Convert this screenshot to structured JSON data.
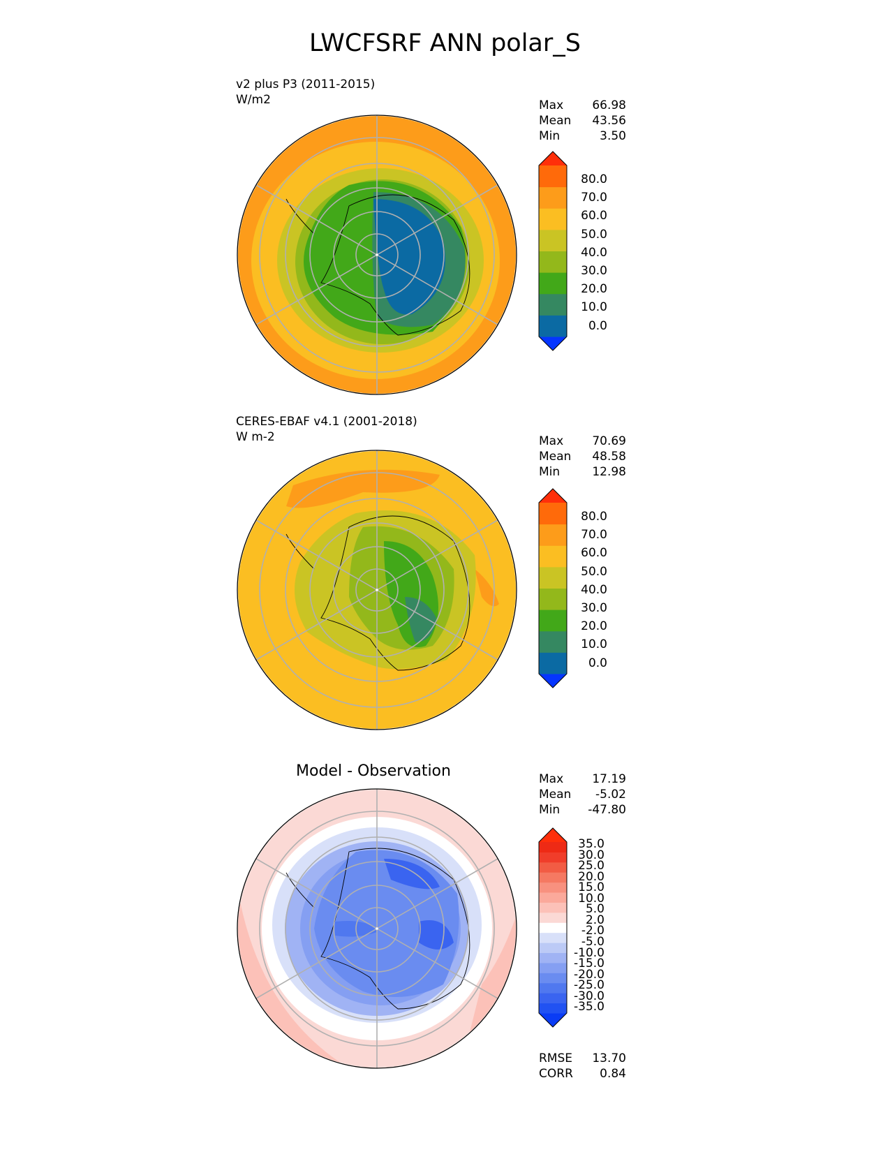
{
  "title": "LWCFSRF ANN polar_S",
  "panels": [
    {
      "name": "test",
      "label_line1": "v2 plus P3 (2011-2015)",
      "label_line2": "W/m2",
      "stats": [
        {
          "label": "Max",
          "value": "66.98"
        },
        {
          "label": "Mean",
          "value": "43.56"
        },
        {
          "label": "Min",
          "value": "3.50"
        }
      ],
      "colorbar": {
        "colors": [
          "#0535ff",
          "#0b6aa3",
          "#358861",
          "#42a819",
          "#93b81b",
          "#cac424",
          "#fbbe22",
          "#fd9c1a",
          "#ff6a0a",
          "#ff2f0a"
        ],
        "ticks": [
          "80.0",
          "70.0",
          "60.0",
          "50.0",
          "40.0",
          "30.0",
          "20.0",
          "10.0",
          "0.0"
        ]
      }
    },
    {
      "name": "reference",
      "label_line1": "CERES-EBAF v4.1 (2001-2018)",
      "label_line2": "W m-2",
      "stats": [
        {
          "label": "Max",
          "value": "70.69"
        },
        {
          "label": "Mean",
          "value": "48.58"
        },
        {
          "label": "Min",
          "value": "12.98"
        }
      ],
      "colorbar": {
        "colors": [
          "#0535ff",
          "#0b6aa3",
          "#358861",
          "#42a819",
          "#93b81b",
          "#cac424",
          "#fbbe22",
          "#fd9c1a",
          "#ff6a0a",
          "#ff2f0a"
        ],
        "ticks": [
          "80.0",
          "70.0",
          "60.0",
          "50.0",
          "40.0",
          "30.0",
          "20.0",
          "10.0",
          "0.0"
        ]
      }
    },
    {
      "name": "difference",
      "title": "Model - Observation",
      "stats": [
        {
          "label": "Max",
          "value": "17.19"
        },
        {
          "label": "Mean",
          "value": "-5.02"
        },
        {
          "label": "Min",
          "value": "-47.80"
        }
      ],
      "extra_stats": [
        {
          "label": "RMSE",
          "value": "13.70"
        },
        {
          "label": "CORR",
          "value": "0.84"
        }
      ],
      "colorbar": {
        "colors": [
          "#0a3cf5",
          "#2152f2",
          "#3a64f0",
          "#5078ef",
          "#6a8cf0",
          "#859ff2",
          "#a0b3f4",
          "#bccaf6",
          "#d8e0f9",
          "#ffffff",
          "#fbd9d5",
          "#fcc1b8",
          "#fba99b",
          "#f8917f",
          "#f57962",
          "#f25c44",
          "#f03d2a",
          "#ee2a15",
          "#ff2f0a"
        ],
        "ticks": [
          "35.0",
          "30.0",
          "25.0",
          "20.0",
          "15.0",
          "10.0",
          "5.0",
          "2.0",
          "-2.0",
          "-5.0",
          "-10.0",
          "-15.0",
          "-20.0",
          "-25.0",
          "-30.0",
          "-35.0"
        ]
      }
    }
  ]
}
